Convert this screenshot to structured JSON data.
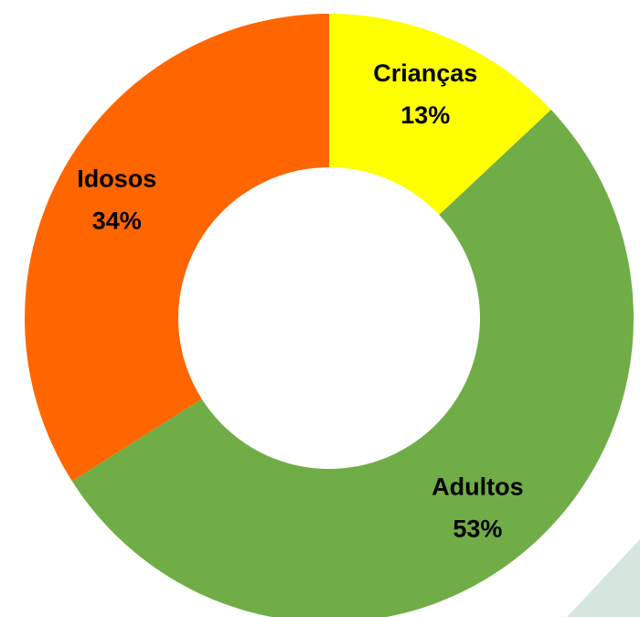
{
  "chart_data": {
    "type": "donut",
    "categories": [
      "Crianças",
      "Adultos",
      "Idosos"
    ],
    "values": [
      13,
      53,
      34
    ],
    "value_labels": [
      "13%",
      "53%",
      "34%"
    ],
    "colors": [
      "#ffff00",
      "#70ad47",
      "#ff6600"
    ]
  }
}
